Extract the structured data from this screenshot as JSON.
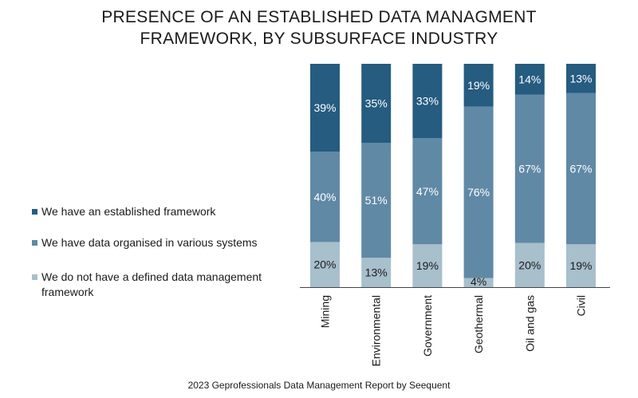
{
  "title_line1": "PRESENCE OF AN ESTABLISHED DATA MANAGMENT",
  "title_line2": "FRAMEWORK, BY SUBSURFACE INDUSTRY",
  "footer": "2023 Geprofessionals Data Management Report by Seequent",
  "colors": {
    "established": "#255c80",
    "organised": "#6089a6",
    "none": "#a8bfcc",
    "axis": "#444444"
  },
  "chart_data": {
    "type": "bar",
    "stacked": true,
    "percent_stacked": true,
    "title": "PRESENCE OF AN ESTABLISHED DATA MANAGMENT FRAMEWORK, BY SUBSURFACE INDUSTRY",
    "categories": [
      "Mining",
      "Environmental",
      "Government",
      "Geothermal",
      "Oil and gas",
      "Civil"
    ],
    "series": [
      {
        "name": "We do not have a defined data management framework",
        "key": "none",
        "values": [
          20,
          13,
          19,
          4,
          20,
          19
        ],
        "labels": [
          "20%",
          "13%",
          "19%",
          "4%",
          "20%",
          "19%"
        ]
      },
      {
        "name": "We have data organised in various systems",
        "key": "organised",
        "values": [
          40,
          51,
          47,
          76,
          67,
          67
        ],
        "labels": [
          "40%",
          "51%",
          "47%",
          "76%",
          "67%",
          "67%"
        ]
      },
      {
        "name": "We have an established framework",
        "key": "established",
        "values": [
          39,
          35,
          33,
          19,
          14,
          13
        ],
        "labels": [
          "39%",
          "35%",
          "33%",
          "19%",
          "14%",
          "13%"
        ]
      }
    ],
    "legend": {
      "placement": "left",
      "order": [
        "established",
        "organised",
        "none"
      ],
      "entries": [
        {
          "key": "established",
          "text": "We have an established framework"
        },
        {
          "key": "organised",
          "text": "We have data organised in various systems"
        },
        {
          "key": "none",
          "text": "We do not have a defined data management framework"
        }
      ]
    },
    "xlabel": "",
    "ylabel": "",
    "ylim": [
      0,
      100
    ],
    "grid": false,
    "category_label_rotation": -90
  }
}
